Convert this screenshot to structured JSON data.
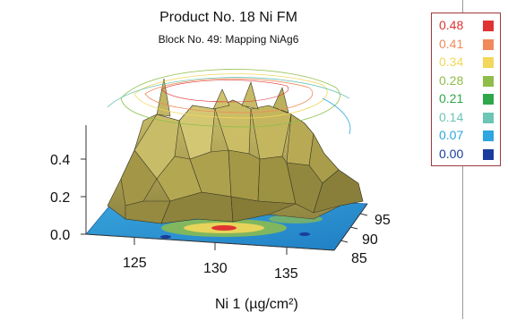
{
  "chart_data": {
    "type": "surface",
    "title": "Product No. 18  Ni FM",
    "subtitle": "Block No.    49:  Mapping NiAg6",
    "xlabel": "Ni 1    (µg/cm²)",
    "x_ticks": [
      "125",
      "130",
      "135"
    ],
    "y_ticks": [
      "85",
      "90",
      "95"
    ],
    "z_ticks": [
      "0.0",
      "0.2",
      "0.4"
    ],
    "zlim": [
      0.0,
      0.48
    ],
    "surface_color": "#b5a85a",
    "plateau_level": 0.4,
    "legend": {
      "position": "top-right",
      "entries": [
        {
          "label": "0.48",
          "color": "#e03232"
        },
        {
          "label": "0.41",
          "color": "#f08a5a"
        },
        {
          "label": "0.34",
          "color": "#f2d75a"
        },
        {
          "label": "0.28",
          "color": "#8fbd4a"
        },
        {
          "label": "0.21",
          "color": "#2ea84a"
        },
        {
          "label": "0.14",
          "color": "#6cc5b5"
        },
        {
          "label": "0.07",
          "color": "#2ea6e0"
        },
        {
          "label": "0.00",
          "color": "#1a3c9c"
        }
      ]
    }
  }
}
